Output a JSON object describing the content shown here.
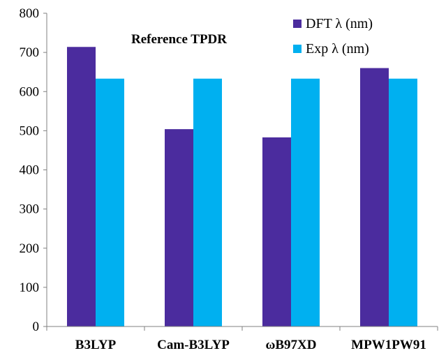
{
  "chart_data": {
    "type": "bar",
    "title": "Reference  TPDR",
    "xlabel": "",
    "ylabel": "",
    "categories": [
      "B3LYP",
      "Cam-B3LYP",
      "ωB97XD",
      "MPW1PW91"
    ],
    "series": [
      {
        "name": "DFT λ (nm)",
        "values": [
          714,
          504,
          483,
          660
        ],
        "color": "#4b2c9e"
      },
      {
        "name": "Exp λ (nm)",
        "values": [
          633,
          633,
          633,
          633
        ],
        "color": "#00b0f0"
      }
    ],
    "ylim": [
      0,
      800
    ],
    "yticks": [
      0,
      100,
      200,
      300,
      400,
      500,
      600,
      700,
      800
    ],
    "grid": false,
    "legend_position": "top-right"
  }
}
